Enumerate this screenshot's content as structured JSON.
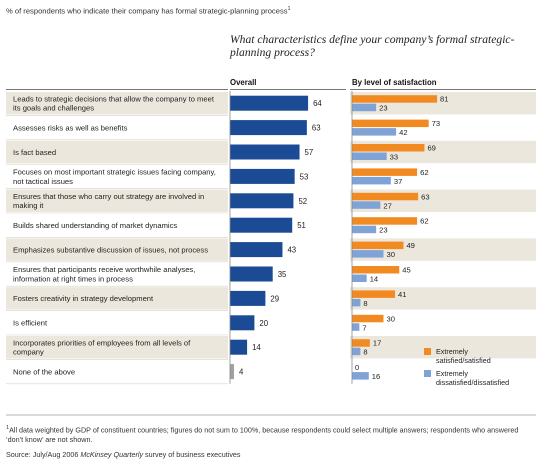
{
  "header": {
    "note": "% of respondents who indicate their company has formal strategic-planning process",
    "note_sup": "1",
    "question": "What characteristics define your company’s formal strategic-planning process?",
    "col_overall": "Overall",
    "col_by_level": "By level of satisfaction"
  },
  "colors": {
    "overall": "#1a4b94",
    "none_bar": "#a0a0a0",
    "satisfied": "#f28a22",
    "dissatisfied": "#7fa3d6",
    "row_shade": "#ece7dd",
    "rule": "#9a9a9a"
  },
  "legend": {
    "satisfied": "Extremely satisfied/satisfied",
    "dissatisfied": "Extremely dissatisfied/dissatisfied"
  },
  "chart_data": {
    "type": "bar",
    "orientation": "horizontal",
    "categories": [
      "Leads to strategic decisions that allow the company to meet its goals and challenges",
      "Assesses risks as well as benefits",
      "Is fact based",
      "Focuses on most important strategic issues facing company, not tactical issues",
      "Ensures that those who carry out strategy are involved in making it",
      "Builds shared understanding of market dynamics",
      "Emphasizes substantive discussion of issues, not process",
      "Ensures that participants receive worthwhile analyses, information at right times in process",
      "Fosters creativity in strategy development",
      "Is efficient",
      "Incorporates priorities of employees from all levels of company",
      "None of the above"
    ],
    "overall": {
      "name": "Overall",
      "values": [
        64,
        63,
        57,
        53,
        52,
        51,
        43,
        35,
        29,
        20,
        14,
        4
      ]
    },
    "series": [
      {
        "name": "Extremely satisfied/satisfied",
        "values": [
          81,
          73,
          69,
          62,
          63,
          62,
          49,
          45,
          41,
          30,
          17,
          0
        ]
      },
      {
        "name": "Extremely dissatisfied/dissatisfied",
        "values": [
          23,
          42,
          33,
          37,
          27,
          23,
          30,
          14,
          8,
          7,
          8,
          16
        ]
      }
    ],
    "xlim": [
      0,
      100
    ],
    "shaded_rows": [
      0,
      2,
      4,
      6,
      8,
      10
    ]
  },
  "footnote": {
    "sup": "1",
    "text": "All data weighted by GDP of constituent countries; figures do not sum to 100%, because respondents could select multiple answers; respondents who answered ‘don’t know’ are not shown.",
    "source_prefix": "Source: July/Aug 2006 ",
    "source_pub": "McKinsey Quarterly",
    "source_suffix": " survey of business executives"
  }
}
